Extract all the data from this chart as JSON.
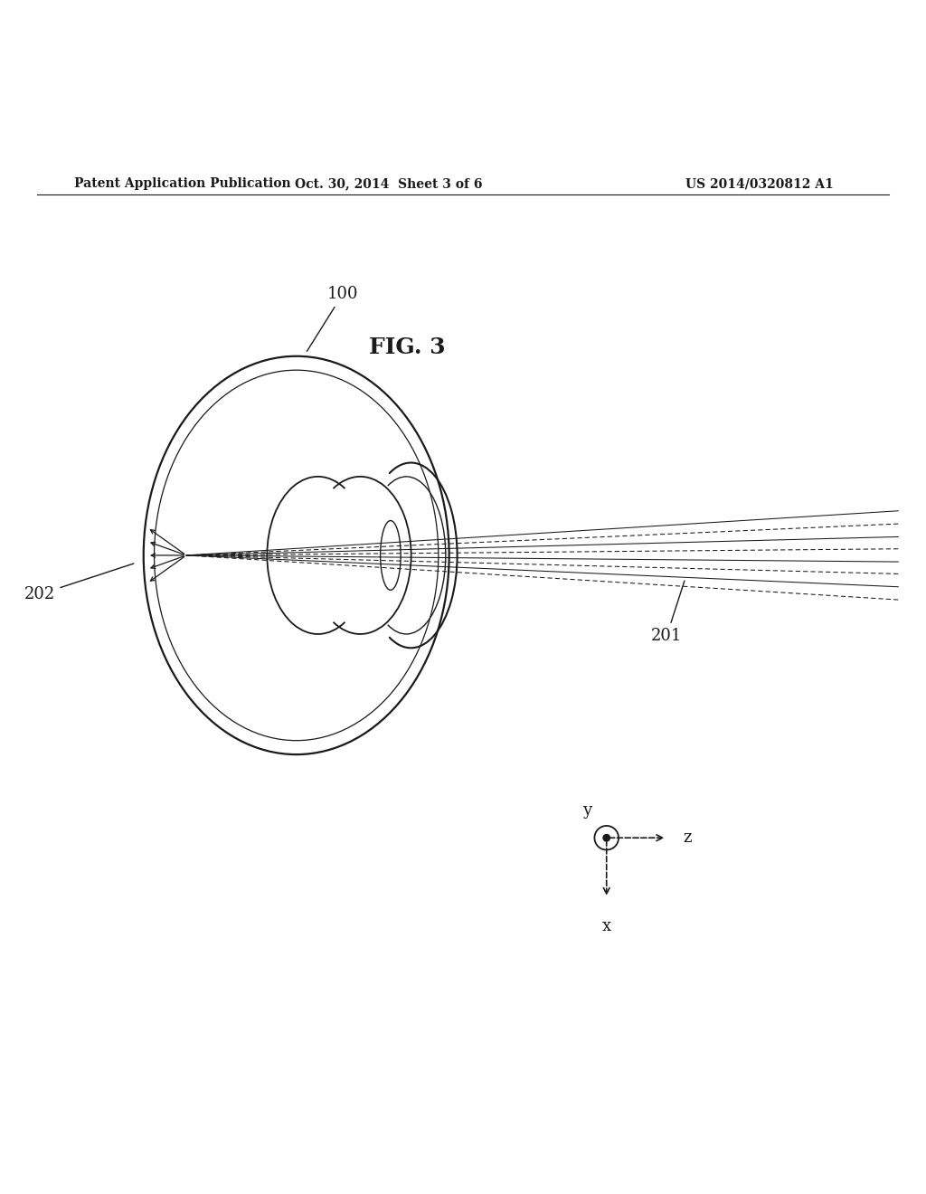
{
  "bg_color": "#ffffff",
  "header_left": "Patent Application Publication",
  "header_mid": "Oct. 30, 2014  Sheet 3 of 6",
  "header_right": "US 2014/0320812 A1",
  "fig_label": "FIG. 3",
  "label_100": "100",
  "label_201": "201",
  "label_202": "202",
  "axis_y_label": "y",
  "axis_z_label": "z",
  "axis_x_label": "x",
  "line_color": "#1a1a1a"
}
